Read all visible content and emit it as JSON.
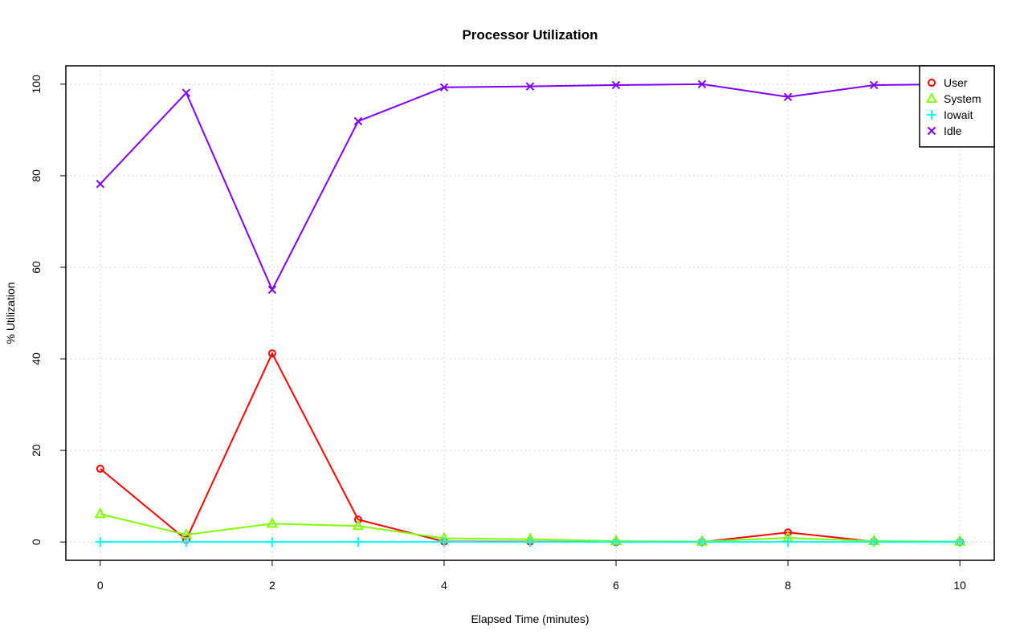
{
  "chart_data": {
    "type": "line",
    "title": "Processor Utilization",
    "xlabel": "Elapsed Time (minutes)",
    "ylabel": "% Utilization",
    "x": [
      0,
      1,
      2,
      3,
      4,
      5,
      6,
      7,
      8,
      9,
      10
    ],
    "xlim": [
      -0.4,
      10.4
    ],
    "ylim": [
      -4,
      104
    ],
    "xticks": [
      0,
      2,
      4,
      6,
      8,
      10
    ],
    "yticks": [
      0,
      20,
      40,
      60,
      80,
      100
    ],
    "grid": true,
    "legend_position": "top-right",
    "series": [
      {
        "name": "User",
        "color": "#FF0000",
        "marker": "circle",
        "values": [
          16.0,
          0.5,
          41.2,
          4.9,
          0.1,
          0.1,
          0.0,
          0.0,
          2.1,
          0.1,
          0.0
        ]
      },
      {
        "name": "System",
        "color": "#80FF00",
        "marker": "triangle",
        "values": [
          6.1,
          1.6,
          4.0,
          3.5,
          0.8,
          0.6,
          0.2,
          0.1,
          0.9,
          0.2,
          0.1
        ]
      },
      {
        "name": "Iowait",
        "color": "#00FFFF",
        "marker": "plus",
        "values": [
          0,
          0,
          0,
          0,
          0,
          0,
          0,
          0,
          0,
          0,
          0
        ]
      },
      {
        "name": "Idle",
        "color": "#8000FF",
        "marker": "cross",
        "values": [
          78.2,
          98.1,
          55.1,
          91.9,
          99.3,
          99.5,
          99.8,
          100.0,
          97.2,
          99.8,
          100.0
        ]
      }
    ]
  }
}
